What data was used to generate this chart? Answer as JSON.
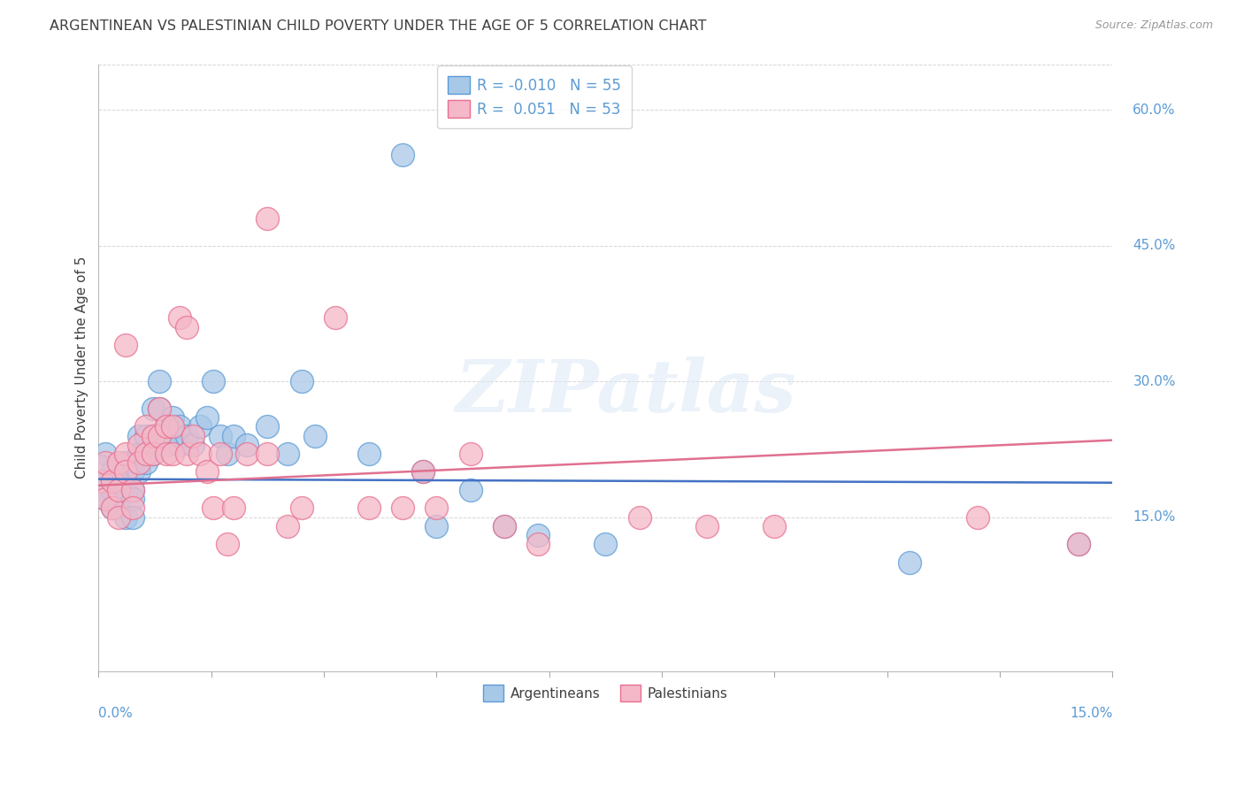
{
  "title": "ARGENTINEAN VS PALESTINIAN CHILD POVERTY UNDER THE AGE OF 5 CORRELATION CHART",
  "source": "Source: ZipAtlas.com",
  "ylabel": "Child Poverty Under the Age of 5",
  "right_yticks": [
    "15.0%",
    "30.0%",
    "45.0%",
    "60.0%"
  ],
  "right_ytick_vals": [
    0.15,
    0.3,
    0.45,
    0.6
  ],
  "R_arg": -0.01,
  "N_arg": 55,
  "R_pal": 0.051,
  "N_pal": 53,
  "blue_fill": "#A8C8E8",
  "blue_edge": "#5B9BD5",
  "pink_fill": "#F4B8C8",
  "pink_edge": "#E87090",
  "blue_line": "#4472C4",
  "pink_line": "#E07090",
  "bg_color": "#FFFFFF",
  "grid_color": "#CCCCCC",
  "title_color": "#404040",
  "axis_label_color": "#5B9BD5",
  "xlim": [
    0.0,
    0.15
  ],
  "ylim": [
    -0.02,
    0.65
  ],
  "arg_trend_y0": 0.192,
  "arg_trend_y1": 0.188,
  "pal_trend_y0": 0.185,
  "pal_trend_y1": 0.235,
  "argentinean_x": [
    0.0005,
    0.001,
    0.001,
    0.001,
    0.002,
    0.002,
    0.002,
    0.003,
    0.003,
    0.003,
    0.004,
    0.004,
    0.004,
    0.005,
    0.005,
    0.005,
    0.005,
    0.006,
    0.006,
    0.006,
    0.007,
    0.007,
    0.008,
    0.008,
    0.008,
    0.009,
    0.009,
    0.01,
    0.01,
    0.011,
    0.012,
    0.012,
    0.013,
    0.014,
    0.015,
    0.016,
    0.017,
    0.018,
    0.019,
    0.02,
    0.022,
    0.025,
    0.028,
    0.03,
    0.032,
    0.04,
    0.045,
    0.048,
    0.05,
    0.055,
    0.06,
    0.065,
    0.075,
    0.12,
    0.145
  ],
  "argentinean_y": [
    0.19,
    0.22,
    0.18,
    0.17,
    0.2,
    0.18,
    0.16,
    0.19,
    0.17,
    0.16,
    0.21,
    0.18,
    0.15,
    0.2,
    0.18,
    0.17,
    0.15,
    0.24,
    0.22,
    0.2,
    0.24,
    0.21,
    0.27,
    0.24,
    0.22,
    0.3,
    0.27,
    0.25,
    0.23,
    0.26,
    0.25,
    0.23,
    0.24,
    0.23,
    0.25,
    0.26,
    0.3,
    0.24,
    0.22,
    0.24,
    0.23,
    0.25,
    0.22,
    0.3,
    0.24,
    0.22,
    0.55,
    0.2,
    0.14,
    0.18,
    0.14,
    0.13,
    0.12,
    0.1,
    0.12
  ],
  "palestinian_x": [
    0.0005,
    0.001,
    0.001,
    0.002,
    0.002,
    0.003,
    0.003,
    0.003,
    0.004,
    0.004,
    0.004,
    0.005,
    0.005,
    0.006,
    0.006,
    0.007,
    0.007,
    0.008,
    0.008,
    0.009,
    0.009,
    0.01,
    0.01,
    0.011,
    0.011,
    0.012,
    0.013,
    0.013,
    0.014,
    0.015,
    0.016,
    0.017,
    0.018,
    0.019,
    0.02,
    0.022,
    0.025,
    0.025,
    0.028,
    0.03,
    0.035,
    0.04,
    0.045,
    0.048,
    0.05,
    0.055,
    0.06,
    0.065,
    0.08,
    0.09,
    0.1,
    0.13,
    0.145
  ],
  "palestinian_y": [
    0.19,
    0.21,
    0.17,
    0.19,
    0.16,
    0.21,
    0.18,
    0.15,
    0.22,
    0.2,
    0.34,
    0.18,
    0.16,
    0.23,
    0.21,
    0.25,
    0.22,
    0.24,
    0.22,
    0.27,
    0.24,
    0.25,
    0.22,
    0.25,
    0.22,
    0.37,
    0.36,
    0.22,
    0.24,
    0.22,
    0.2,
    0.16,
    0.22,
    0.12,
    0.16,
    0.22,
    0.48,
    0.22,
    0.14,
    0.16,
    0.37,
    0.16,
    0.16,
    0.2,
    0.16,
    0.22,
    0.14,
    0.12,
    0.15,
    0.14,
    0.14,
    0.15,
    0.12
  ]
}
